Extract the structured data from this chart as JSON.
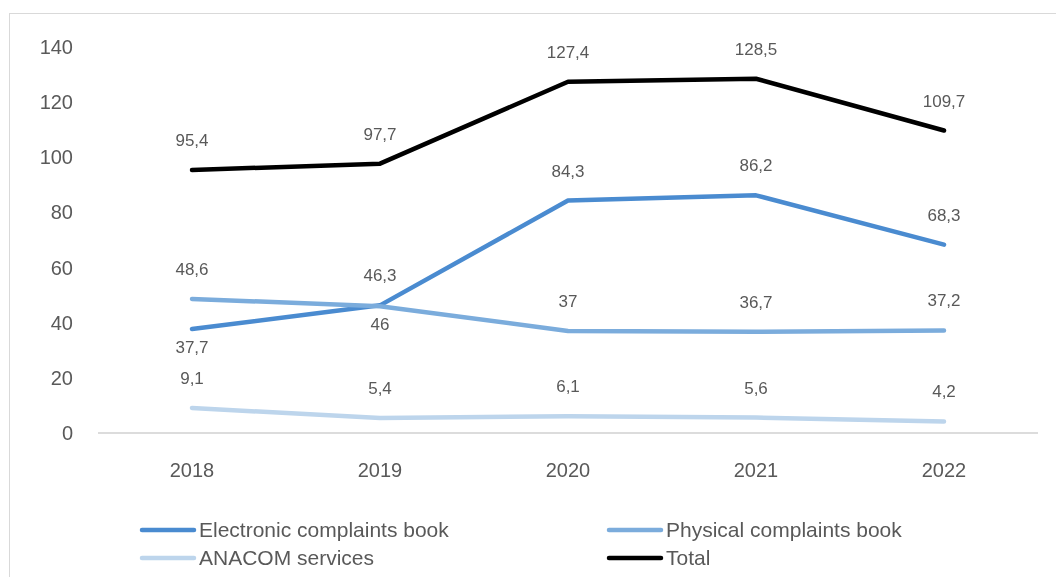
{
  "chart_data": {
    "type": "line",
    "categories": [
      "2018",
      "2019",
      "2020",
      "2021",
      "2022"
    ],
    "ylim": [
      0,
      140
    ],
    "yticks": [
      0,
      20,
      40,
      60,
      80,
      100,
      120,
      140
    ],
    "legend": "bottom",
    "marker": "none",
    "line_style": "solid",
    "series": [
      {
        "name": "Electronic complaints book",
        "color": "#4a8bd0",
        "values": [
          37.7,
          46.3,
          84.3,
          86.2,
          68.3
        ],
        "value_labels": [
          "37,7",
          "46,3",
          "84,3",
          "86,2",
          "68,3"
        ]
      },
      {
        "name": "Physical complaints book",
        "color": "#7bacdc",
        "values": [
          48.6,
          46,
          37,
          36.7,
          37.2
        ],
        "value_labels": [
          "48,6",
          "46",
          "37",
          "36,7",
          "37,2"
        ]
      },
      {
        "name": "ANACOM services",
        "color": "#bdd5ec",
        "values": [
          9.1,
          5.4,
          6.1,
          5.6,
          4.2
        ],
        "value_labels": [
          "9,1",
          "5,4",
          "6,1",
          "5,6",
          "4,2"
        ]
      },
      {
        "name": "Total",
        "color": "#000000",
        "values": [
          95.4,
          97.7,
          127.4,
          128.5,
          109.7
        ],
        "value_labels": [
          "95,4",
          "97,7",
          "127,4",
          "128,5",
          "109,7"
        ]
      }
    ]
  }
}
